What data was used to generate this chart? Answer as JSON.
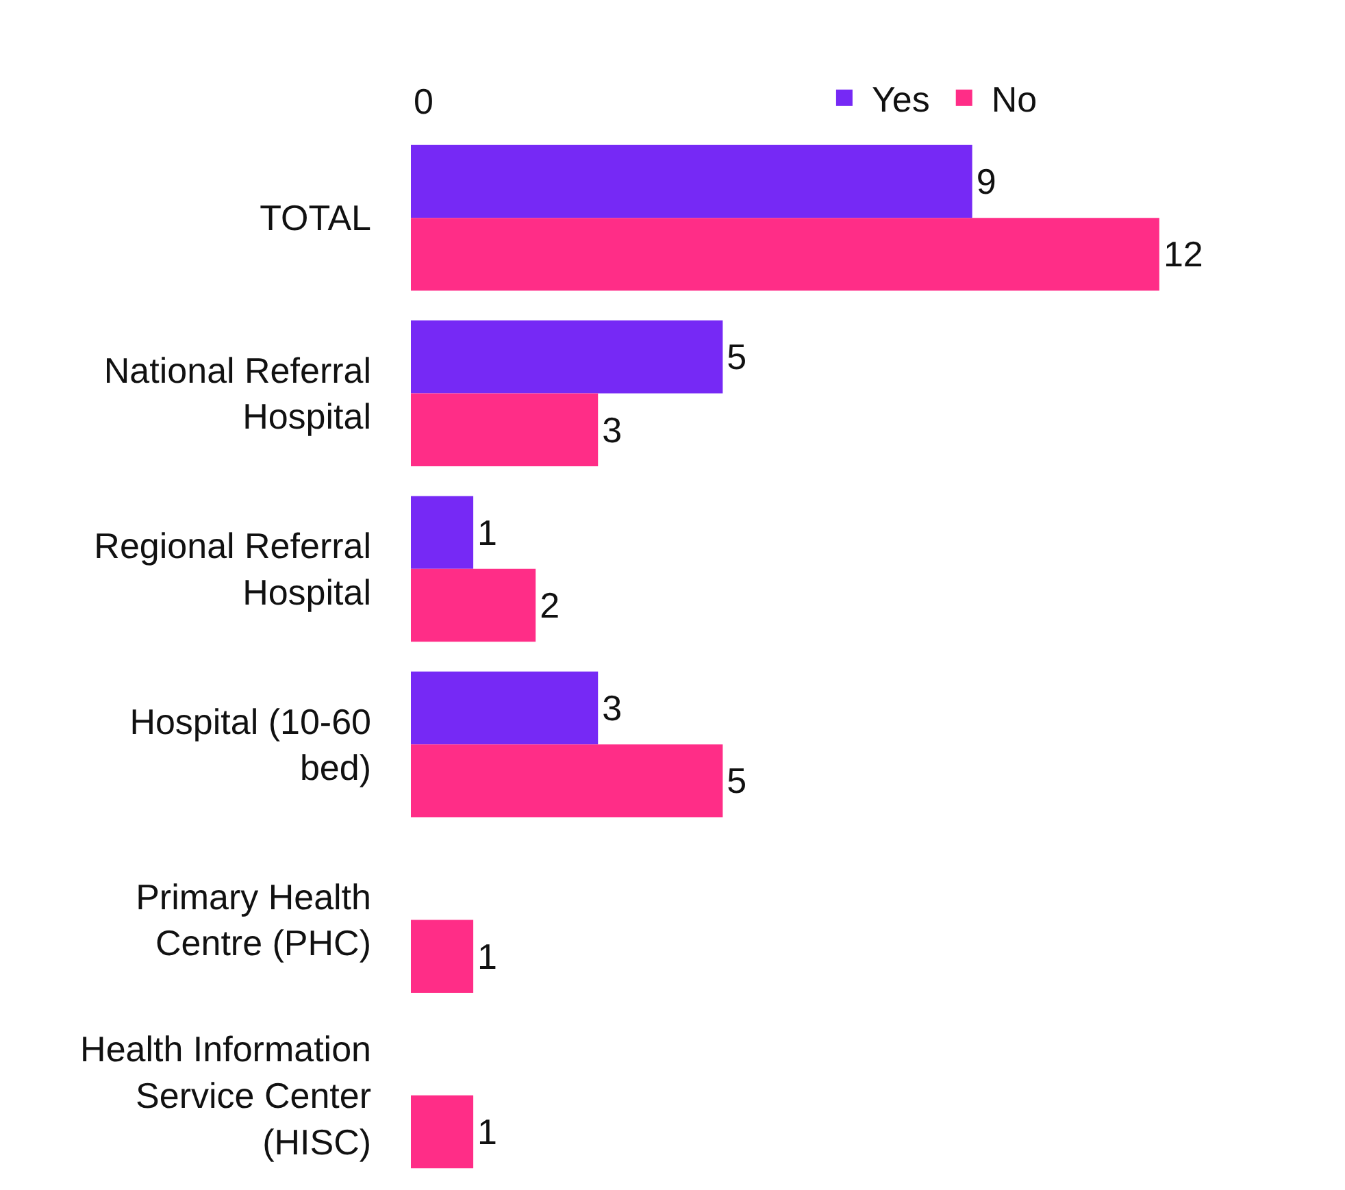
{
  "chart_data": {
    "type": "bar",
    "orientation": "horizontal",
    "categories": [
      "TOTAL",
      "National Referral Hospital",
      "Regional Referral Hospital",
      "Hospital (10-60 bed)",
      "Primary Health Centre (PHC)",
      "Health Information Service Center (HISC)"
    ],
    "series": [
      {
        "name": "Yes",
        "color": "#7629f5",
        "values": [
          9,
          5,
          1,
          3,
          null,
          null
        ]
      },
      {
        "name": "No",
        "color": "#ff2d87",
        "values": [
          12,
          3,
          2,
          5,
          1,
          1
        ]
      }
    ],
    "annotations": [
      "0"
    ],
    "data_labels": true,
    "legend": "top"
  }
}
